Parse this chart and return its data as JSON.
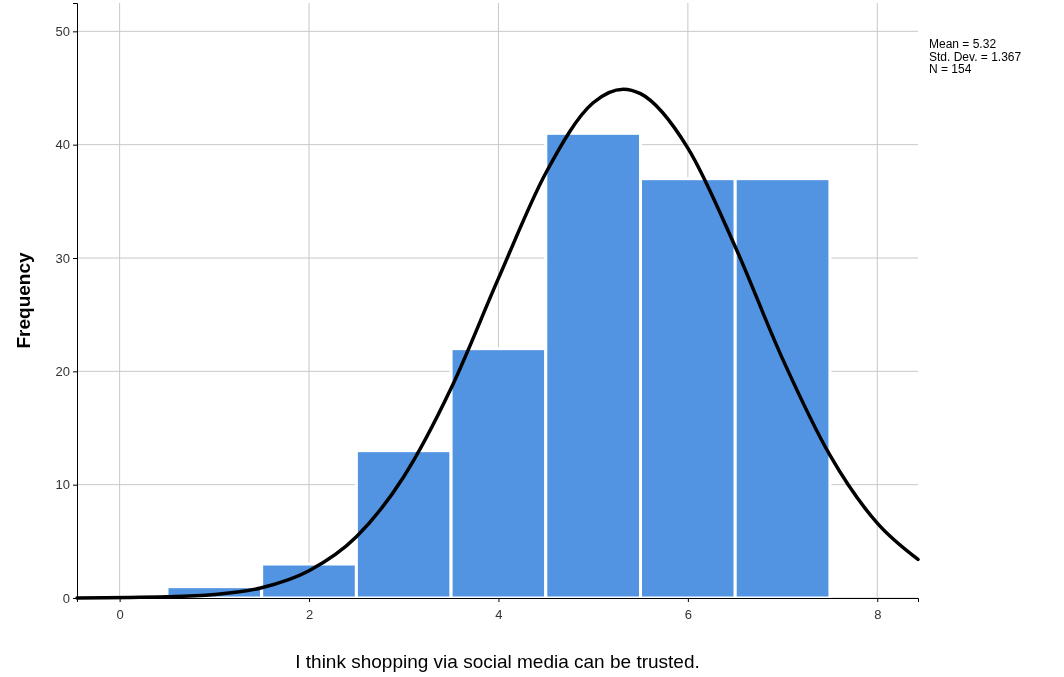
{
  "chart_data": {
    "type": "histogram",
    "xlabel": "I think shopping via social media can be trusted.",
    "ylabel": "Frequency",
    "xlim": [
      -0.45,
      8.43
    ],
    "xticks": [
      0,
      2,
      4,
      6,
      8
    ],
    "ylim": [
      0,
      52.5
    ],
    "yticks": [
      0,
      10,
      20,
      30,
      40,
      50
    ],
    "grid": true,
    "annotations": [
      "Mean = 5.32",
      "Std. Dev. = 1.367",
      "N = 154"
    ],
    "series": [
      {
        "color": "#5294e2",
        "bins": [
          0.5,
          1.5,
          2.5,
          3.5,
          4.5,
          5.5,
          6.5,
          7.5
        ],
        "values": [
          1,
          3,
          13,
          22,
          41,
          37,
          37
        ]
      },
      {
        "type": "line",
        "color": "#000000",
        "x": [
          -0.45,
          0.5,
          1,
          1.5,
          2,
          2.5,
          3,
          3.5,
          4,
          4.5,
          5,
          5.32,
          5.5,
          6,
          6.5,
          7,
          7.5,
          8,
          8.43
        ],
        "values": [
          0,
          0.1,
          0.3,
          0.9,
          2.4,
          5.4,
          10.7,
          18.5,
          28.2,
          37.5,
          43.7,
          44.9,
          44.5,
          39.7,
          31.0,
          21.1,
          12.6,
          6.6,
          3.4
        ]
      }
    ]
  }
}
